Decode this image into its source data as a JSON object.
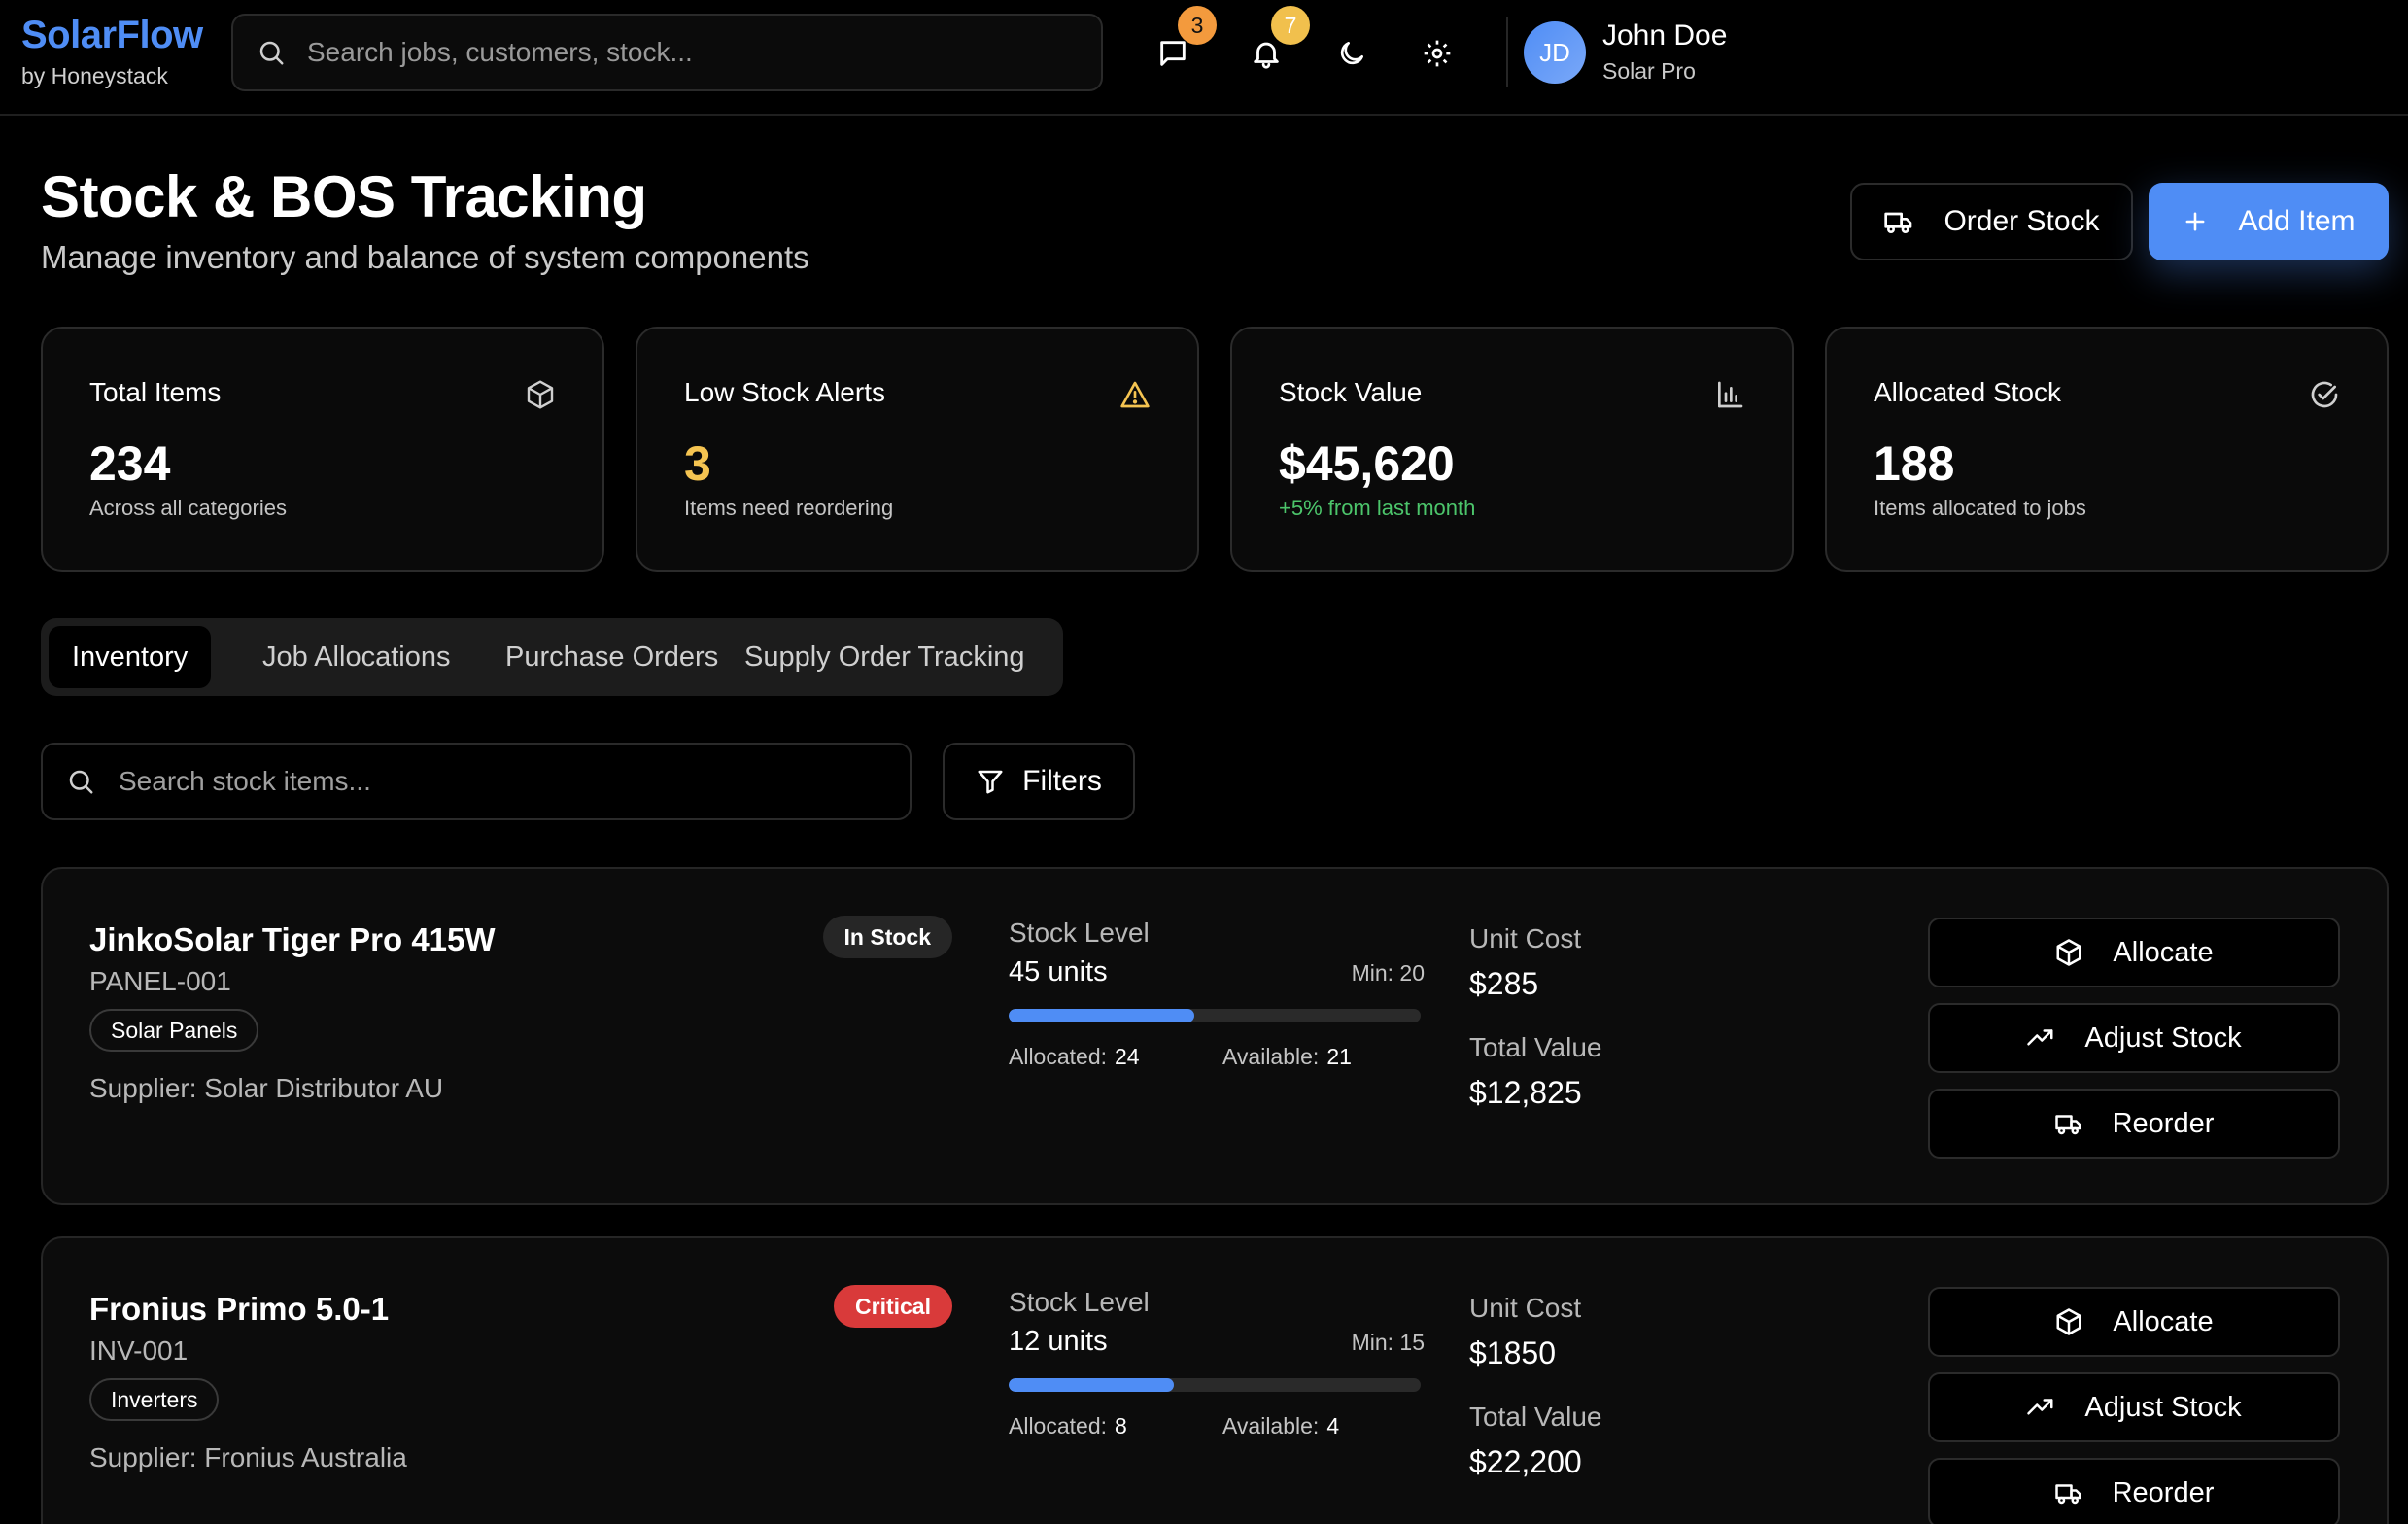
{
  "brand": {
    "name": "SolarFlow",
    "sub": "by Honeystack"
  },
  "header": {
    "search_placeholder": "Search jobs, customers, stock...",
    "messages_count": "3",
    "notifications_count": "7",
    "user": {
      "initials": "JD",
      "name": "John Doe",
      "role": "Solar Pro"
    }
  },
  "page": {
    "title": "Stock & BOS Tracking",
    "subtitle": "Manage inventory and balance of system components",
    "order_label": "Order Stock",
    "add_label": "Add Item"
  },
  "stats": [
    {
      "label": "Total Items",
      "value": "234",
      "note": "Across all categories",
      "icon": "package-icon"
    },
    {
      "label": "Low Stock Alerts",
      "value": "3",
      "note": "Items need reordering",
      "icon": "warning-icon"
    },
    {
      "label": "Stock Value",
      "value": "$45,620",
      "note": "+5% from last month",
      "icon": "bar-chart-icon"
    },
    {
      "label": "Allocated Stock",
      "value": "188",
      "note": "Items allocated to jobs",
      "icon": "check-circle-icon"
    }
  ],
  "tabs": [
    "Inventory",
    "Job Allocations",
    "Purchase Orders",
    "Supply Order Tracking"
  ],
  "stock_search": {
    "placeholder": "Search stock items...",
    "filters_label": "Filters"
  },
  "labels": {
    "stock_level": "Stock Level",
    "allocated": "Allocated:",
    "available": "Available:",
    "unit_cost": "Unit Cost",
    "total_value": "Total Value",
    "allocate": "Allocate",
    "adjust": "Adjust Stock",
    "reorder": "Reorder"
  },
  "items": [
    {
      "name": "JinkoSolar Tiger Pro 415W",
      "sku": "PANEL-001",
      "category": "Solar Panels",
      "supplier": "Supplier: Solar Distributor AU",
      "status": "In Stock",
      "units": "45 units",
      "min": "Min: 20",
      "fill_fraction": 0.45,
      "allocated": "24",
      "available": "21",
      "unit_cost": "$285",
      "total_value": "$12,825"
    },
    {
      "name": "Fronius Primo 5.0-1",
      "sku": "INV-001",
      "category": "Inverters",
      "supplier": "Supplier: Fronius Australia",
      "status": "Critical",
      "units": "12 units",
      "min": "Min: 15",
      "fill_fraction": 0.4,
      "allocated": "8",
      "available": "4",
      "unit_cost": "$1850",
      "total_value": "$22,200"
    }
  ],
  "colors": {
    "accent": "#4f8df5",
    "warning": "#f5c451",
    "positive": "#4cc56b",
    "critical": "#d93a3a"
  }
}
